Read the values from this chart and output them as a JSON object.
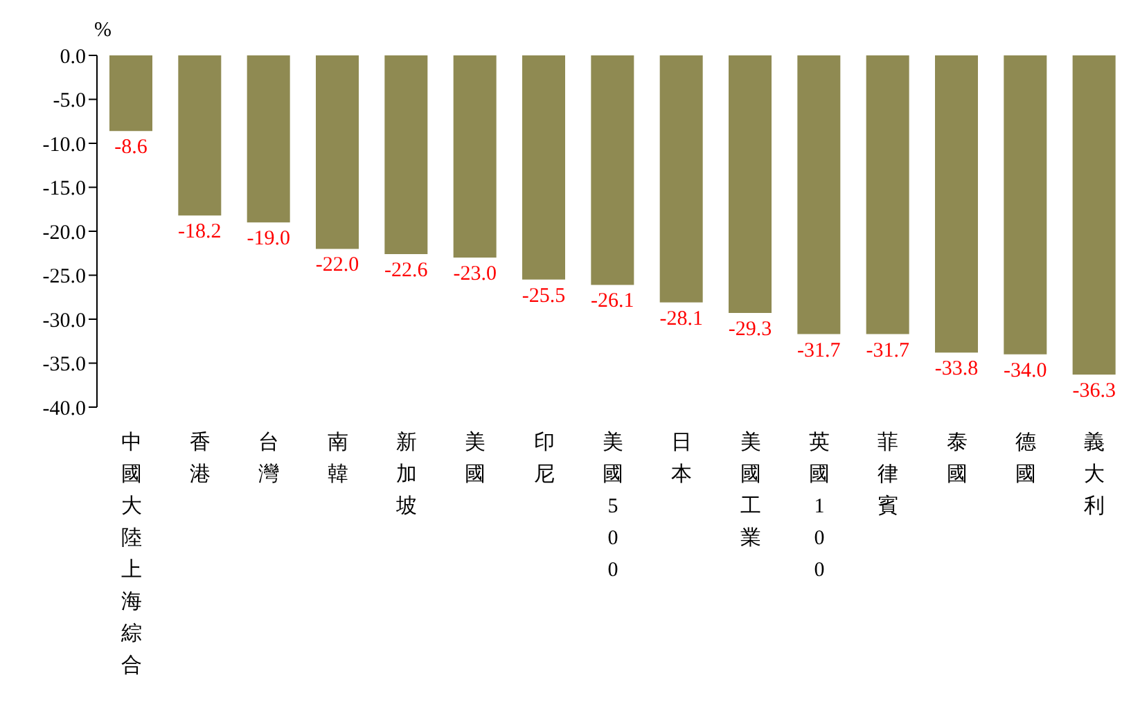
{
  "chart_data": {
    "type": "bar",
    "ylabel": "%",
    "categories": [
      "中國大陸上海綜合",
      "香港",
      "台灣",
      "南韓",
      "新加坡",
      "美國",
      "印尼",
      "美國500",
      "日本",
      "美國工業",
      "英國100",
      "菲律賓",
      "泰國",
      "德國",
      "義大利"
    ],
    "values": [
      -8.6,
      -18.2,
      -19.0,
      -22.0,
      -22.6,
      -23.0,
      -25.5,
      -26.1,
      -28.1,
      -29.3,
      -31.7,
      -31.7,
      -33.8,
      -34.0,
      -36.3
    ],
    "value_labels": [
      "-8.6",
      "-18.2",
      "-19.0",
      "-22.0",
      "-22.6",
      "-23.0",
      "-25.5",
      "-26.1",
      "-28.1",
      "-29.3",
      "-31.7",
      "-31.7",
      "-33.8",
      "-34.0",
      "-36.3"
    ],
    "color": "#8f8a52",
    "ylim": [
      -40,
      0
    ],
    "yticks": [
      {
        "value": 0,
        "label": "0.0"
      },
      {
        "value": -5,
        "label": "-5.0"
      },
      {
        "value": -10,
        "label": "-10.0"
      },
      {
        "value": -15,
        "label": "-15.0"
      },
      {
        "value": -20,
        "label": "-20.0"
      },
      {
        "value": -25,
        "label": "-25.0"
      },
      {
        "value": -30,
        "label": "-30.0"
      },
      {
        "value": -35,
        "label": "-35.0"
      },
      {
        "value": -40,
        "label": "-40.0"
      }
    ],
    "grid": false,
    "legend": false
  }
}
